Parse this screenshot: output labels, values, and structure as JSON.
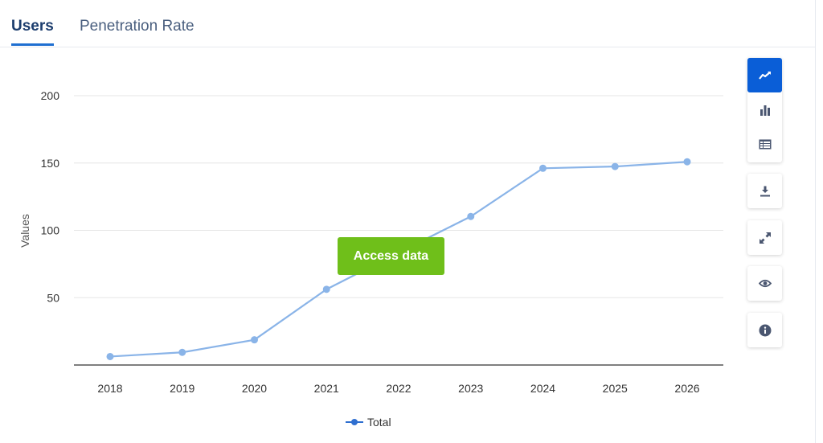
{
  "tabs": [
    {
      "label": "Users"
    },
    {
      "label": "Penetration Rate"
    }
  ],
  "access_button": {
    "label": "Access data"
  },
  "toolbar": {
    "icons": [
      "line-chart-icon",
      "bar-chart-icon",
      "table-icon",
      "download-icon",
      "fullscreen-icon",
      "eye-icon",
      "info-icon"
    ],
    "accent": "#0a5ed7"
  },
  "chart_data": {
    "type": "line",
    "x": [
      "2018",
      "2019",
      "2020",
      "2021",
      "2022",
      "2023",
      "2024",
      "2025",
      "2026"
    ],
    "series": [
      {
        "name": "Total",
        "values": [
          6.3,
          9.4,
          18.7,
          56.2,
          83.5,
          110.3,
          146.1,
          147.4,
          150.9
        ],
        "color": "#8ab4e8"
      }
    ],
    "ylabel": "Values",
    "yticks": [
      50,
      100,
      150,
      200
    ],
    "ylim": [
      0,
      200
    ],
    "grid": true,
    "legend": "bottom-center"
  }
}
